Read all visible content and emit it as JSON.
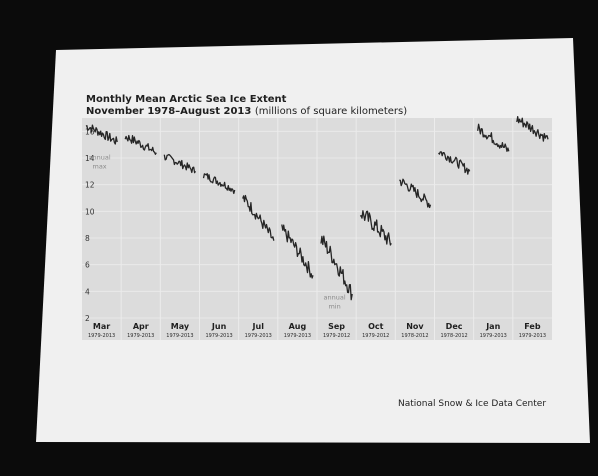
{
  "page": {
    "title": "Monthly Mean Arctic Sea Ice Extent",
    "subtitle_bold": "November 1978–August 2013",
    "subtitle_units": "(millions of square kilometers)",
    "credit": "National Snow & Ice Data Center"
  },
  "chart_data": {
    "type": "line",
    "title": "Monthly Mean Arctic Sea Ice Extent",
    "subtitle": "November 1978–August 2013 (millions of square kilometers)",
    "xlabel": "",
    "ylabel": "",
    "ylim": [
      2,
      17
    ],
    "yticks": [
      2,
      4,
      6,
      8,
      10,
      12,
      14,
      16
    ],
    "grid": true,
    "colors": {
      "line": "#262626",
      "plot_bg": "#dcdcdc",
      "grid": "#ececec",
      "annotation": "#8a8a8a"
    },
    "series": [
      {
        "month": "Mar",
        "years": "1979-2013",
        "start": 16.4,
        "end": 15.2,
        "noise": 0.35
      },
      {
        "month": "Apr",
        "years": "1979-2013",
        "start": 15.6,
        "end": 14.4,
        "noise": 0.35
      },
      {
        "month": "May",
        "years": "1979-2013",
        "start": 14.1,
        "end": 13.0,
        "noise": 0.3
      },
      {
        "month": "Jun",
        "years": "1979-2013",
        "start": 12.7,
        "end": 11.6,
        "noise": 0.3
      },
      {
        "month": "Jul",
        "years": "1979-2013",
        "start": 11.0,
        "end": 7.8,
        "noise": 0.45
      },
      {
        "month": "Aug",
        "years": "1979-2013",
        "start": 8.6,
        "end": 5.2,
        "noise": 0.5
      },
      {
        "month": "Sep",
        "years": "1979-2012",
        "start": 7.9,
        "end": 3.8,
        "noise": 0.6
      },
      {
        "month": "Oct",
        "years": "1979-2012",
        "start": 9.9,
        "end": 7.6,
        "noise": 0.6
      },
      {
        "month": "Nov",
        "years": "1978-2012",
        "start": 12.3,
        "end": 10.5,
        "noise": 0.4
      },
      {
        "month": "Dec",
        "years": "1978-2012",
        "start": 14.5,
        "end": 13.0,
        "noise": 0.35
      },
      {
        "month": "Jan",
        "years": "1979-2013",
        "start": 16.2,
        "end": 14.5,
        "noise": 0.4
      },
      {
        "month": "Feb",
        "years": "1979-2013",
        "start": 16.9,
        "end": 15.4,
        "noise": 0.4
      }
    ],
    "annotations": [
      {
        "text": "annual",
        "series": "Mar",
        "value": 13.9
      },
      {
        "text": "max",
        "series": "Mar",
        "value": 13.2
      },
      {
        "text": "annual",
        "series": "Sep",
        "value": 3.4
      },
      {
        "text": "min",
        "series": "Sep",
        "value": 2.7
      }
    ]
  }
}
